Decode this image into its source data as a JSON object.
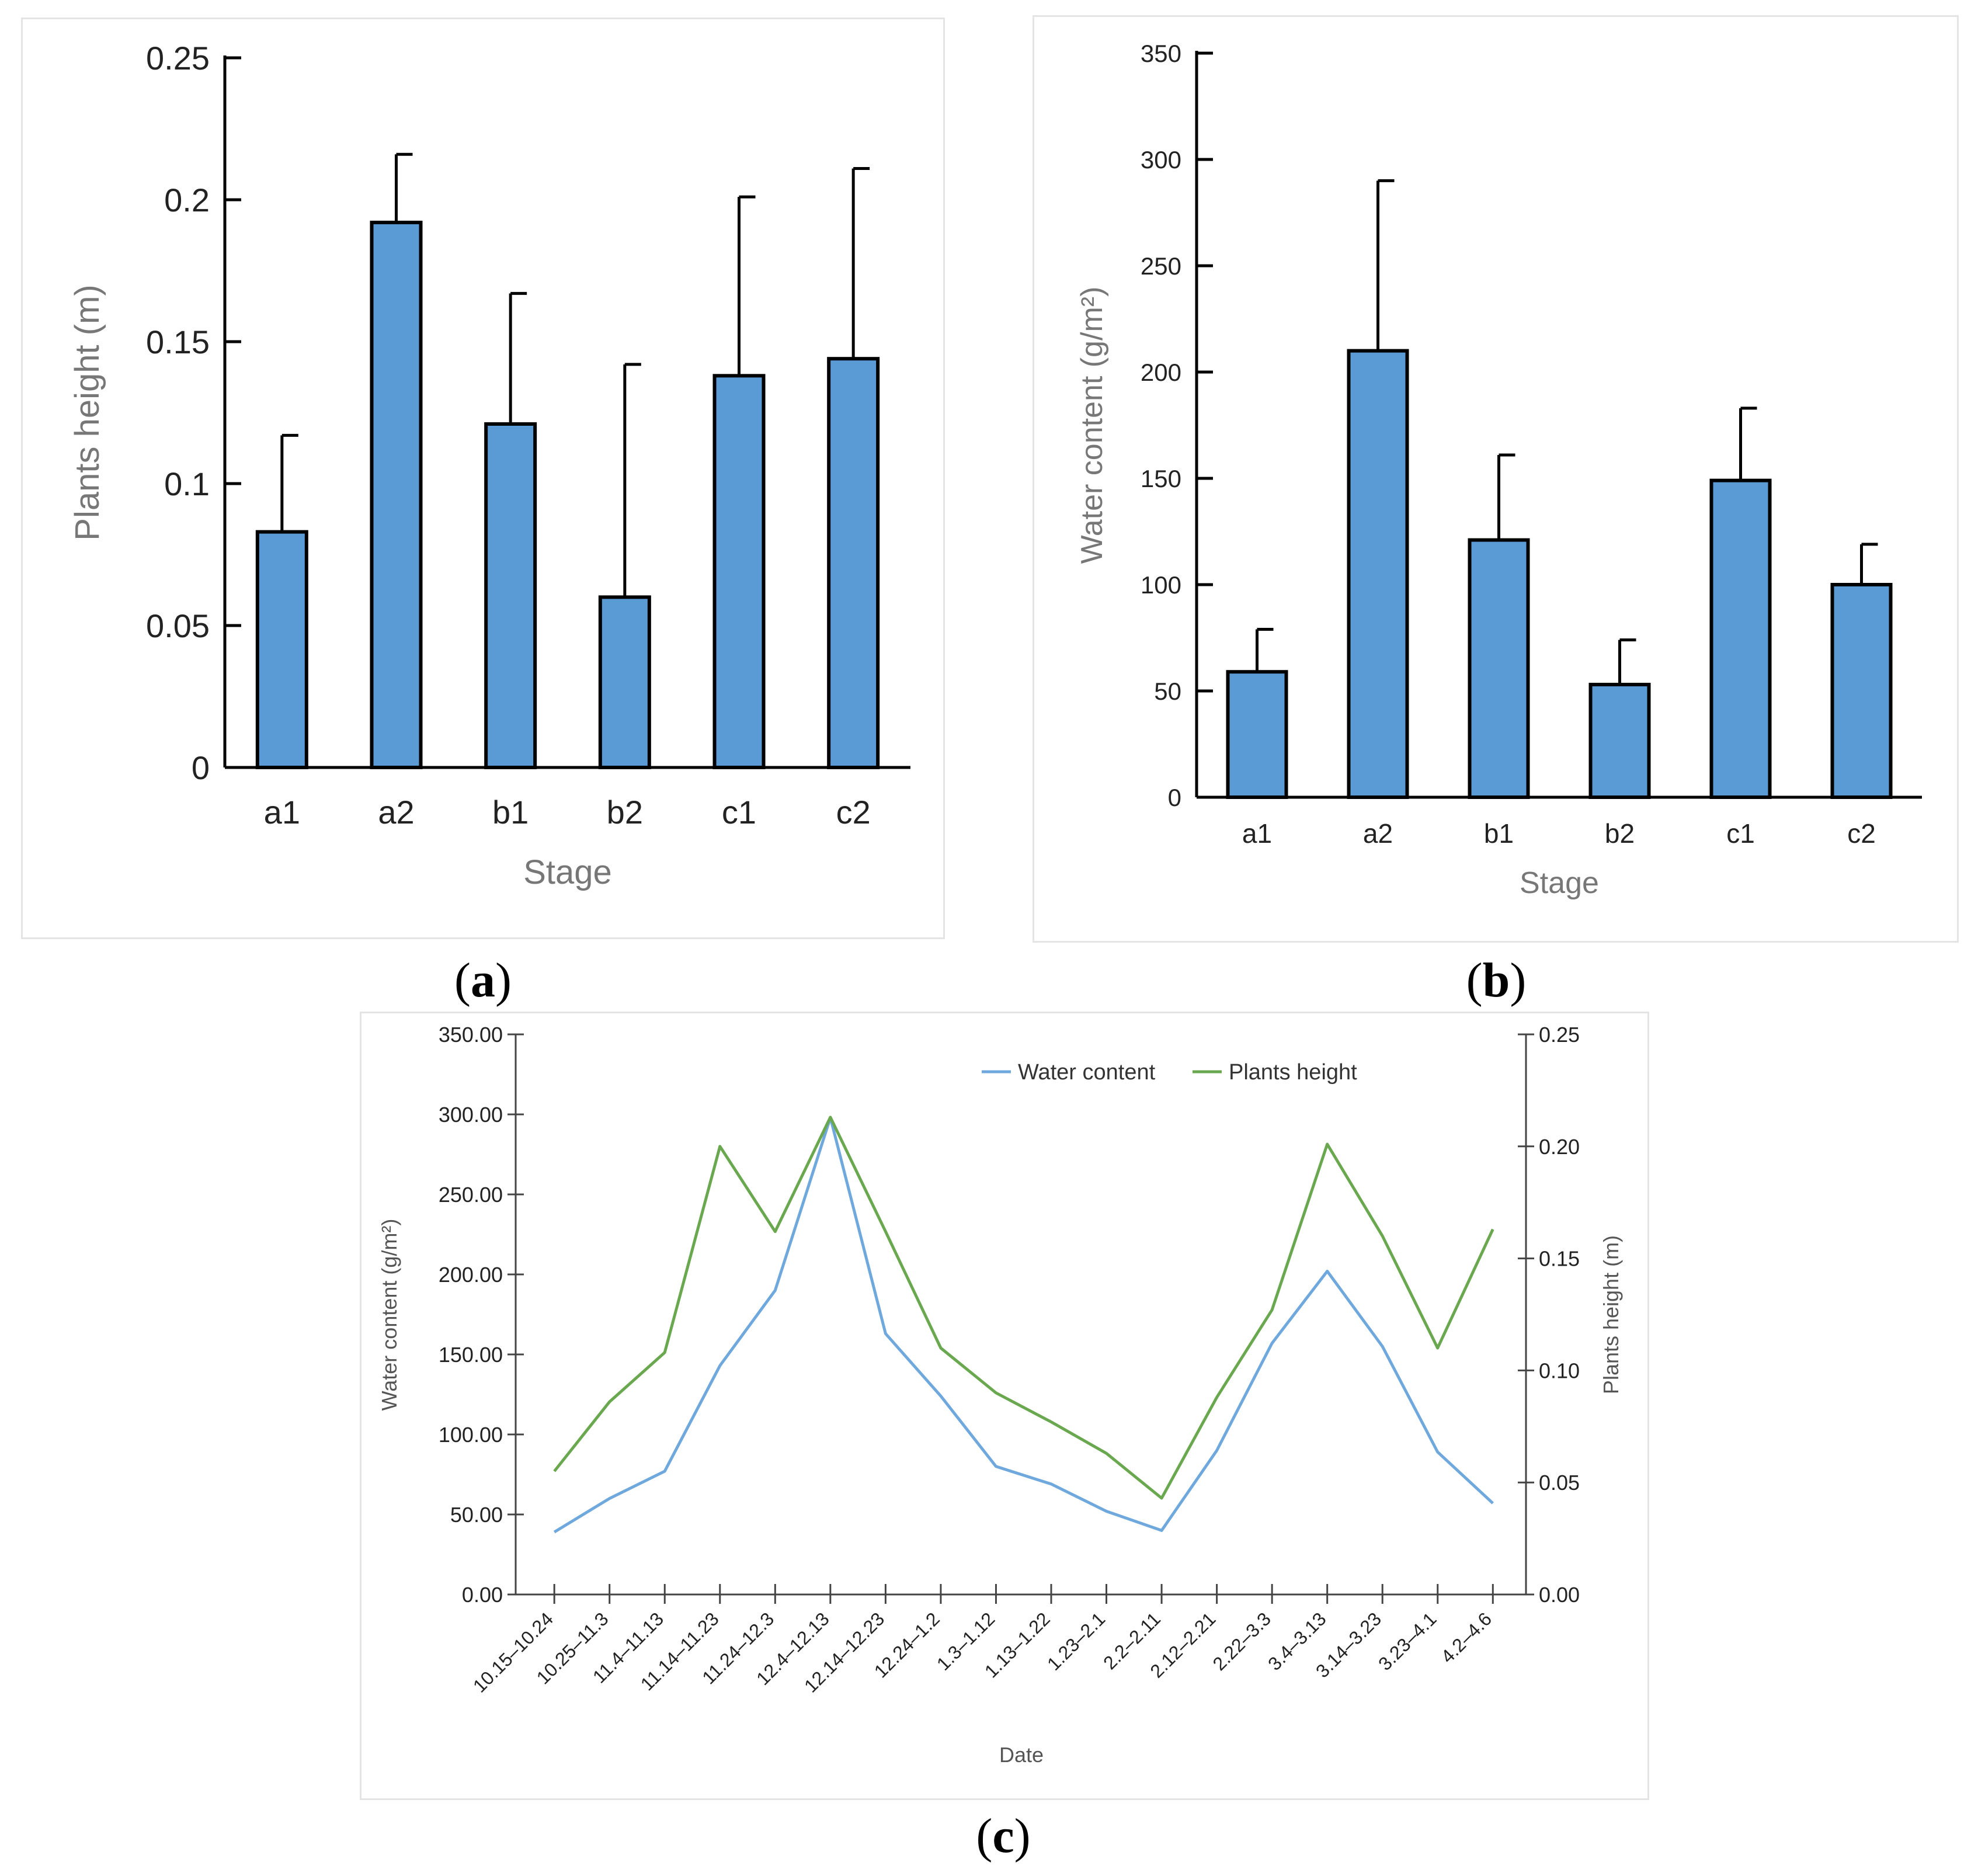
{
  "chart_data": [
    {
      "panel": "a",
      "type": "bar",
      "title": "",
      "caption_letter": "a",
      "xlabel": "Stage",
      "ylabel": "Plants height (m)",
      "categories": [
        "a1",
        "a2",
        "b1",
        "b2",
        "c1",
        "c2"
      ],
      "values": [
        0.083,
        0.192,
        0.121,
        0.06,
        0.138,
        0.144
      ],
      "error": [
        0.034,
        0.024,
        0.046,
        0.082,
        0.063,
        0.067
      ],
      "ylim": [
        0,
        0.25
      ],
      "yticks": [
        0,
        0.05,
        0.1,
        0.15,
        0.2,
        0.25
      ],
      "ytick_labels": [
        "0",
        "0.05",
        "0.1",
        "0.15",
        "0.2",
        "0.25"
      ],
      "bar_color": "#5b9bd5",
      "grid": false
    },
    {
      "panel": "b",
      "type": "bar",
      "title": "",
      "caption_letter": "b",
      "xlabel": "Stage",
      "ylabel": "Water content (g/m²)",
      "categories": [
        "a1",
        "a2",
        "b1",
        "b2",
        "c1",
        "c2"
      ],
      "values": [
        59,
        210,
        121,
        53,
        149,
        100
      ],
      "error": [
        20,
        80,
        40,
        21,
        34,
        19
      ],
      "ylim": [
        0,
        350
      ],
      "yticks": [
        0,
        50,
        100,
        150,
        200,
        250,
        300,
        350
      ],
      "ytick_labels": [
        "0",
        "50",
        "100",
        "150",
        "200",
        "250",
        "300",
        "350"
      ],
      "bar_color": "#5b9bd5",
      "grid": false
    },
    {
      "panel": "c",
      "type": "line",
      "title": "",
      "caption_letter": "c",
      "xlabel": "Date",
      "ylabel_left": "Water content (g/m²)",
      "ylabel_right": "Plants height (m)",
      "categories": [
        "10.15–10.24",
        "10.25–11.3",
        "11.4–11.13",
        "11.14–11.23",
        "11.24–12.3",
        "12.4–12.13",
        "12.14–12.23",
        "12.24–1.2",
        "1.3–1.12",
        "1.13–1.22",
        "1.23–2.1",
        "2.2–2.11",
        "2.12–2.21",
        "2.22–3.3",
        "3.4–3.13",
        "3.14–3.23",
        "3.23–4.1",
        "4.2–4.6"
      ],
      "ylim_left": [
        0,
        350
      ],
      "yticks_left": [
        "0.00",
        "50.00",
        "100.00",
        "150.00",
        "200.00",
        "250.00",
        "300.00",
        "350.00"
      ],
      "ylim_right": [
        0,
        0.25
      ],
      "yticks_right": [
        "0.00",
        "0.05",
        "0.10",
        "0.15",
        "0.20",
        "0.25"
      ],
      "legend_position": "top-right",
      "series": [
        {
          "name": "Water content",
          "axis": "left",
          "color": "#6fa8dc",
          "values": [
            39,
            60,
            77,
            143,
            190,
            298,
            163,
            124,
            80,
            69,
            52,
            40,
            90,
            157,
            202,
            155,
            89,
            57
          ]
        },
        {
          "name": "Plants height",
          "axis": "right",
          "color": "#6aa84f",
          "values": [
            0.055,
            0.086,
            0.108,
            0.2,
            0.162,
            0.213,
            0.162,
            0.11,
            0.09,
            0.077,
            0.063,
            0.043,
            0.088,
            0.127,
            0.201,
            0.16,
            0.11,
            0.163
          ]
        }
      ]
    }
  ]
}
